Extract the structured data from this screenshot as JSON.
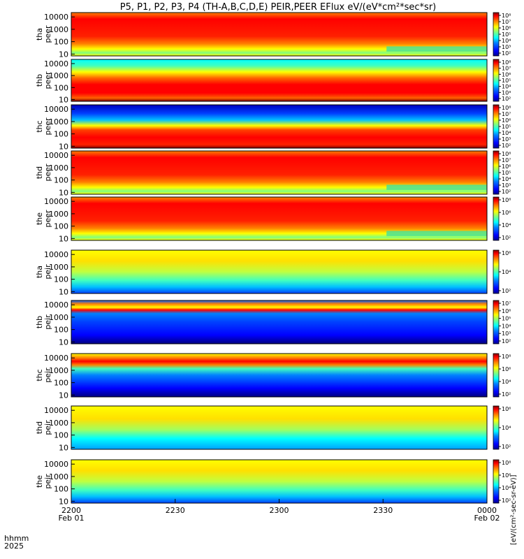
{
  "title": "P5, P1, P2, P3, P4 (TH-A,B,C,D,E) PEIR,PEER EFlux eV/(eV*cm²*sec*sr)",
  "colorbar_unit_label": "[eV/(cm²-sec-sr-eV)]",
  "x_axis": {
    "row_label_top": "hhmm",
    "row_label_bottom": "2025",
    "ticks": [
      {
        "label": "2200",
        "date": "Feb 01",
        "t": 0
      },
      {
        "label": "2230",
        "date": "",
        "t": 30
      },
      {
        "label": "2300",
        "date": "",
        "t": 60
      },
      {
        "label": "2330",
        "date": "",
        "t": 90
      },
      {
        "label": "0000",
        "date": "Feb 02",
        "t": 120
      }
    ],
    "range_minutes": [
      0,
      120
    ]
  },
  "chart_data": {
    "type": "heatmap",
    "y_scale": "log",
    "y_unit": "eV",
    "y_ticks": [
      10,
      100,
      1000,
      10000
    ],
    "y_tick_labels": [
      "10",
      "100",
      "1000",
      "10000"
    ],
    "colorbar_scale": "log",
    "panels": [
      {
        "probe": "tha",
        "species": "peer",
        "colorbar_ticks": [
          "10⁸",
          "10⁷",
          "10⁶",
          "10⁵",
          "10⁴",
          "10³",
          "10²"
        ]
      },
      {
        "probe": "thb",
        "species": "peer",
        "colorbar_ticks": [
          "10⁸",
          "10⁷",
          "10⁶",
          "10⁵",
          "10⁴",
          "10³",
          "10²"
        ]
      },
      {
        "probe": "thc",
        "species": "peer",
        "colorbar_ticks": [
          "10⁸",
          "10⁷",
          "10⁶",
          "10⁵",
          "10⁴",
          "10³",
          "10²"
        ]
      },
      {
        "probe": "thd",
        "species": "peer",
        "colorbar_ticks": [
          "10⁸",
          "10⁷",
          "10⁶",
          "10⁵",
          "10⁴",
          "10³",
          "10²"
        ]
      },
      {
        "probe": "the",
        "species": "peer",
        "colorbar_ticks": [
          "10⁸",
          "10⁶",
          "10⁴",
          "10²"
        ]
      },
      {
        "probe": "tha",
        "species": "peir",
        "colorbar_ticks": [
          "10⁶",
          "10⁴",
          "10²"
        ]
      },
      {
        "probe": "thb",
        "species": "peir",
        "colorbar_ticks": [
          "10⁷",
          "10⁶",
          "10⁵",
          "10⁴",
          "10³",
          "10²"
        ]
      },
      {
        "probe": "thc",
        "species": "peir",
        "colorbar_ticks": [
          "10⁸",
          "10⁶",
          "10⁴",
          "10²"
        ]
      },
      {
        "probe": "thd",
        "species": "peir",
        "colorbar_ticks": [
          "10⁶",
          "10⁴",
          "10²"
        ]
      },
      {
        "probe": "the",
        "species": "peir",
        "colorbar_ticks": [
          "10⁸",
          "10⁶",
          "10⁴",
          "10²"
        ]
      }
    ]
  },
  "colors": {
    "jet": [
      "#00008f",
      "#0000ff",
      "#0080ff",
      "#00ffff",
      "#80ff80",
      "#ffff00",
      "#ff8000",
      "#ff0000",
      "#800000"
    ]
  }
}
